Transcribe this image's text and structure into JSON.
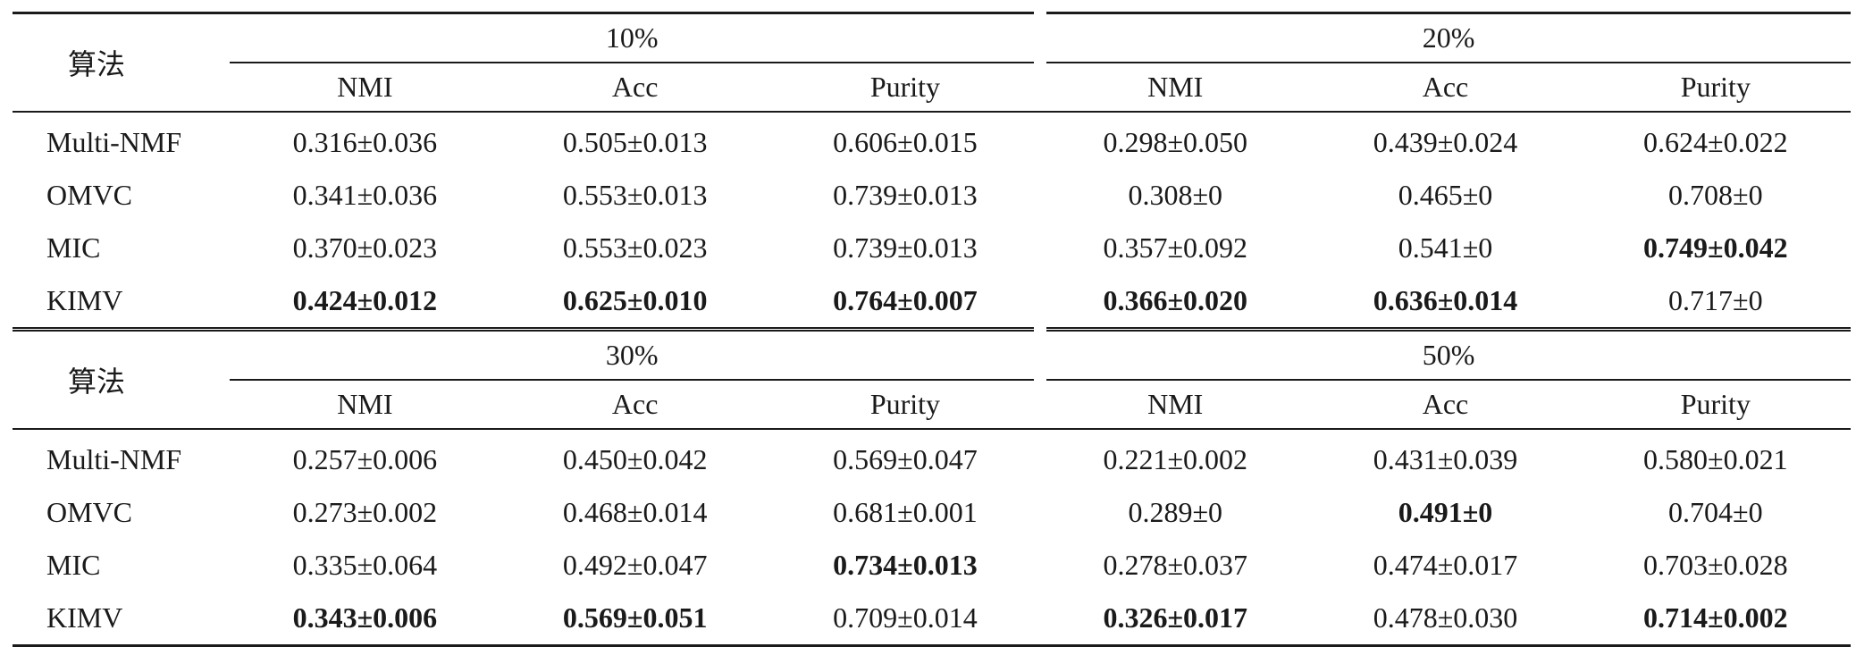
{
  "tables": [
    {
      "algo_label": "算法",
      "groups": [
        {
          "label": "10%",
          "metrics": [
            "NMI",
            "Acc",
            "Purity"
          ]
        },
        {
          "label": "20%",
          "metrics": [
            "NMI",
            "Acc",
            "Purity"
          ]
        }
      ],
      "rows": [
        {
          "name": "Multi-NMF",
          "cells": [
            {
              "v": "0.316±0.036",
              "b": false
            },
            {
              "v": "0.505±0.013",
              "b": false
            },
            {
              "v": "0.606±0.015",
              "b": false
            },
            {
              "v": "0.298±0.050",
              "b": false
            },
            {
              "v": "0.439±0.024",
              "b": false
            },
            {
              "v": "0.624±0.022",
              "b": false
            }
          ]
        },
        {
          "name": "OMVC",
          "cells": [
            {
              "v": "0.341±0.036",
              "b": false
            },
            {
              "v": "0.553±0.013",
              "b": false
            },
            {
              "v": "0.739±0.013",
              "b": false
            },
            {
              "v": "0.308±0",
              "b": false
            },
            {
              "v": "0.465±0",
              "b": false
            },
            {
              "v": "0.708±0",
              "b": false
            }
          ]
        },
        {
          "name": "MIC",
          "cells": [
            {
              "v": "0.370±0.023",
              "b": false
            },
            {
              "v": "0.553±0.023",
              "b": false
            },
            {
              "v": "0.739±0.013",
              "b": false
            },
            {
              "v": "0.357±0.092",
              "b": false
            },
            {
              "v": "0.541±0",
              "b": false
            },
            {
              "v": "0.749±0.042",
              "b": true
            }
          ]
        },
        {
          "name": "KIMV",
          "cells": [
            {
              "v": "0.424±0.012",
              "b": true
            },
            {
              "v": "0.625±0.010",
              "b": true
            },
            {
              "v": "0.764±0.007",
              "b": true
            },
            {
              "v": "0.366±0.020",
              "b": true
            },
            {
              "v": "0.636±0.014",
              "b": true
            },
            {
              "v": "0.717±0",
              "b": false
            }
          ]
        }
      ]
    },
    {
      "algo_label": "算法",
      "groups": [
        {
          "label": "30%",
          "metrics": [
            "NMI",
            "Acc",
            "Purity"
          ]
        },
        {
          "label": "50%",
          "metrics": [
            "NMI",
            "Acc",
            "Purity"
          ]
        }
      ],
      "rows": [
        {
          "name": "Multi-NMF",
          "cells": [
            {
              "v": "0.257±0.006",
              "b": false
            },
            {
              "v": "0.450±0.042",
              "b": false
            },
            {
              "v": "0.569±0.047",
              "b": false
            },
            {
              "v": "0.221±0.002",
              "b": false
            },
            {
              "v": "0.431±0.039",
              "b": false
            },
            {
              "v": "0.580±0.021",
              "b": false
            }
          ]
        },
        {
          "name": "OMVC",
          "cells": [
            {
              "v": "0.273±0.002",
              "b": false
            },
            {
              "v": "0.468±0.014",
              "b": false
            },
            {
              "v": "0.681±0.001",
              "b": false
            },
            {
              "v": "0.289±0",
              "b": false
            },
            {
              "v": "0.491±0",
              "b": true
            },
            {
              "v": "0.704±0",
              "b": false
            }
          ]
        },
        {
          "name": "MIC",
          "cells": [
            {
              "v": "0.335±0.064",
              "b": false
            },
            {
              "v": "0.492±0.047",
              "b": false
            },
            {
              "v": "0.734±0.013",
              "b": true
            },
            {
              "v": "0.278±0.037",
              "b": false
            },
            {
              "v": "0.474±0.017",
              "b": false
            },
            {
              "v": "0.703±0.028",
              "b": false
            }
          ]
        },
        {
          "name": "KIMV",
          "cells": [
            {
              "v": "0.343±0.006",
              "b": true
            },
            {
              "v": "0.569±0.051",
              "b": true
            },
            {
              "v": "0.709±0.014",
              "b": false
            },
            {
              "v": "0.326±0.017",
              "b": true
            },
            {
              "v": "0.478±0.030",
              "b": false
            },
            {
              "v": "0.714±0.002",
              "b": true
            }
          ]
        }
      ]
    }
  ]
}
